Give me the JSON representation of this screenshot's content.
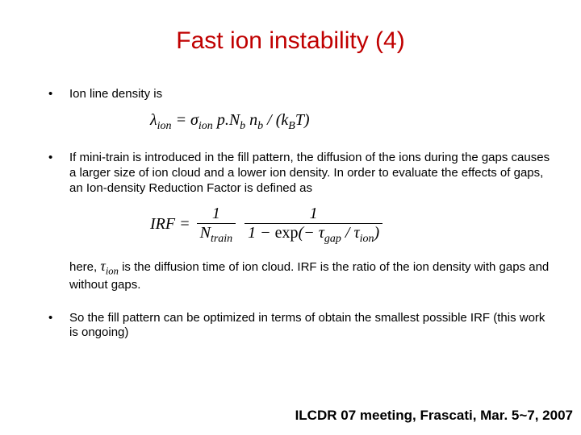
{
  "title": "Fast ion instability (4)",
  "bullets": {
    "b1": "Ion line density is",
    "b2": "If mini-train is introduced in the fill pattern, the diffusion of the ions during the gaps causes a larger size of ion cloud and a lower ion density. In order to evaluate the effects of gaps, an Ion-density Reduction Factor is defined as",
    "b2_cont_prefix": "here, ",
    "b2_cont_suffix": " is the diffusion time of ion cloud. IRF is the ratio of the ion density with gaps and without gaps.",
    "b3": "So the fill pattern can be optimized in terms of obtain the smallest possible IRF (this work is ongoing)"
  },
  "eq1": {
    "lhs_html": "λ<sub class=\"sub\">ion</sub> = σ<sub class=\"sub\">ion</sub> p.N<sub class=\"sub\">b</sub> n<sub class=\"sub\">b</sub> / (k<sub class=\"sub\">B</sub>T)"
  },
  "eq2": {
    "lhs": "IRF = ",
    "frac1_num": "1",
    "frac1_den": "N<sub class=\"sub\">train</sub>",
    "frac2_num": "1",
    "frac2_den": "1 − <span class=\"upright\">exp</span>(− τ<sub class=\"sub\">gap</sub> / τ<sub class=\"sub\">ion</sub>)"
  },
  "tau_ion_html": "τ<sub class=\"sub\">ion</sub>",
  "footer": "ILCDR 07 meeting, Frascati, Mar. 5~7, 2007"
}
